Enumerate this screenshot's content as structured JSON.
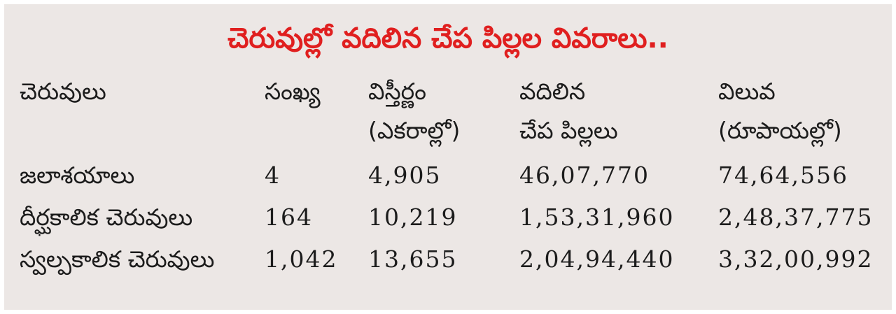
{
  "title": "చెరువుల్లో వదిలిన చేప పిల్లల వివరాలు..",
  "colors": {
    "title": "#e01f1f",
    "background": "#ece7e5",
    "text": "#1c1c1c"
  },
  "table": {
    "headers": [
      {
        "line1": "చెరువులు",
        "line2": ""
      },
      {
        "line1": "సంఖ్య",
        "line2": ""
      },
      {
        "line1": "విస్తీర్ణం",
        "line2": "(ఎకరాల్లో)"
      },
      {
        "line1": "వదిలిన",
        "line2": "చేప పిల్లలు"
      },
      {
        "line1": "విలువ",
        "line2": "(రూపాయల్లో)"
      }
    ],
    "rows": [
      [
        "జలాశయాలు",
        "4",
        "4,905",
        "46,07,770",
        "74,64,556"
      ],
      [
        "దీర్ఘకాలిక చెరువులు",
        "164",
        "10,219",
        "1,53,31,960",
        "2,48,37,775"
      ],
      [
        "స్వల్పకాలిక చెరువులు",
        "1,042",
        "13,655",
        "2,04,94,440",
        "3,32,00,992"
      ]
    ]
  }
}
